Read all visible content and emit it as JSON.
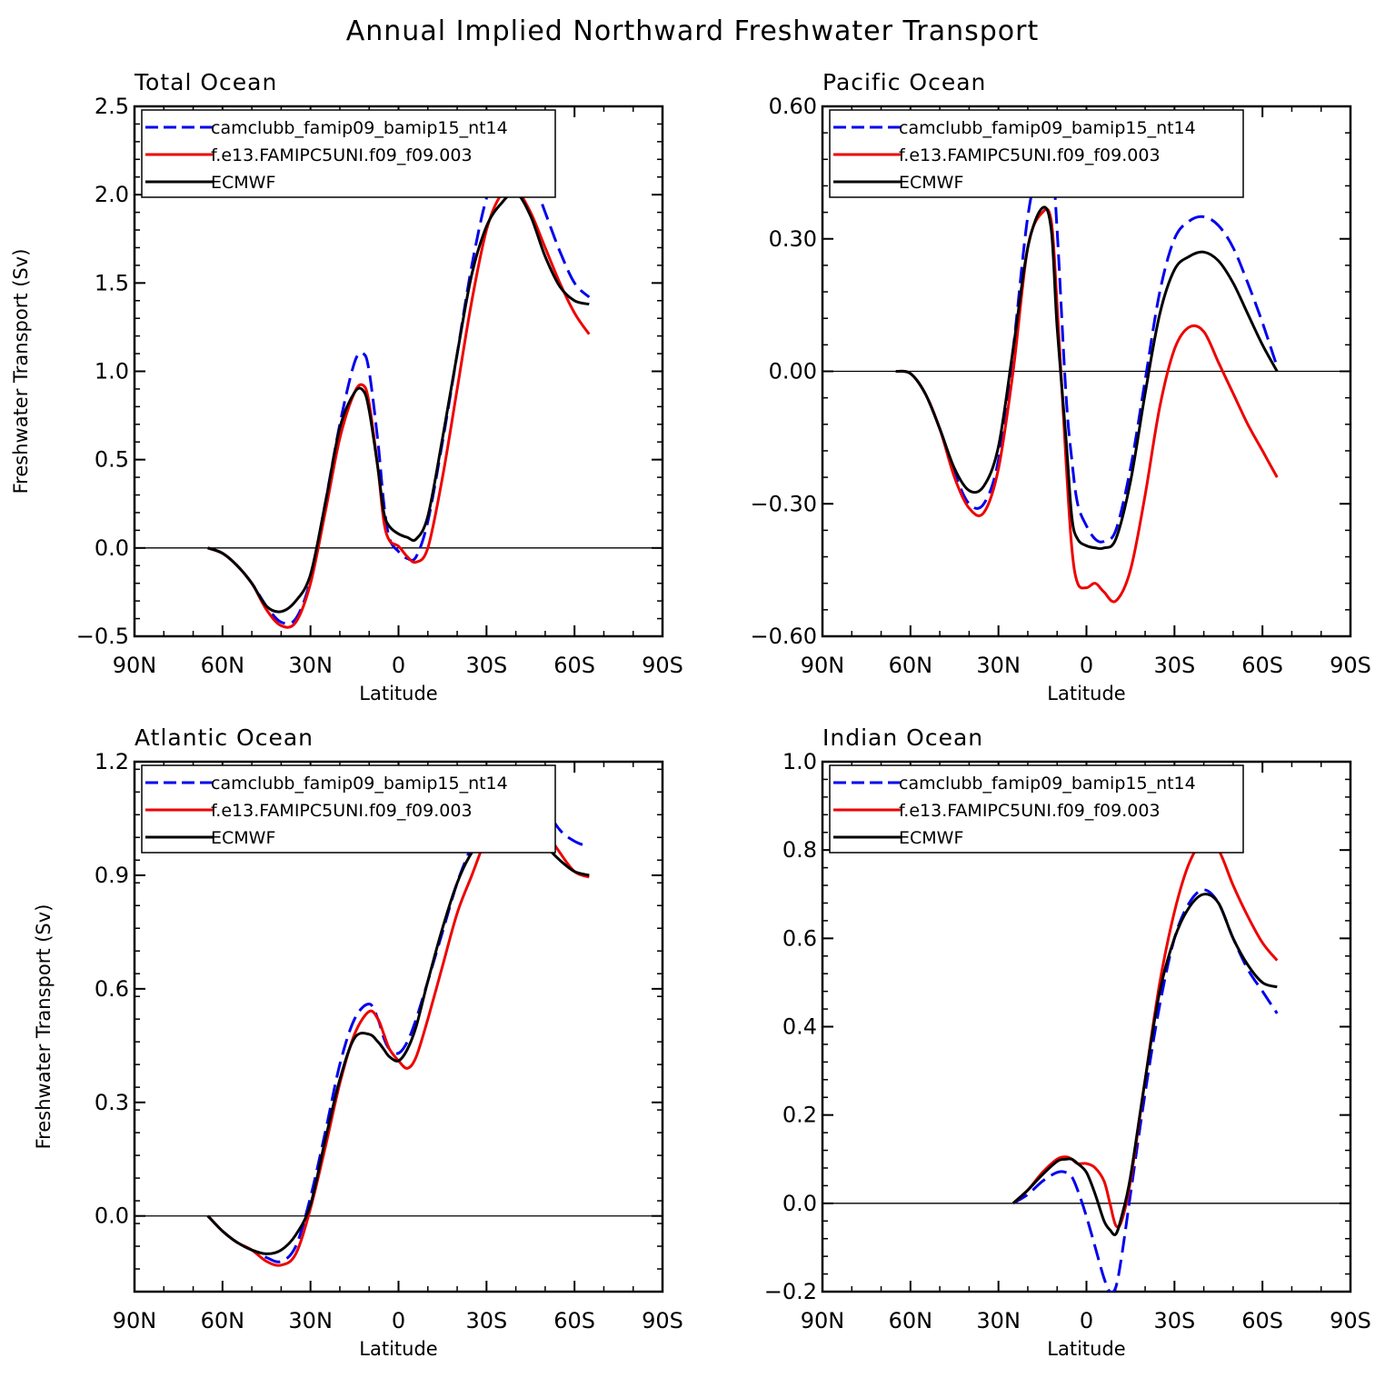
{
  "title": "Annual Implied Northward Freshwater Transport",
  "chart_data": [
    {
      "type": "line",
      "panel_title": "Total Ocean",
      "xlabel": "Latitude",
      "ylabel": "Freshwater Transport (Sv)",
      "xlim": [
        90,
        -90
      ],
      "x_ticks": [
        90,
        60,
        30,
        0,
        -30,
        -60,
        -90
      ],
      "x_tick_labels": [
        "90N",
        "60N",
        "30N",
        "0",
        "30S",
        "60S",
        "90S"
      ],
      "ylim": [
        -0.5,
        2.5
      ],
      "y_ticks": [
        -0.5,
        0.0,
        0.5,
        1.0,
        1.5,
        2.0,
        2.5
      ],
      "y_tick_labels": [
        "−0.5",
        "0.0",
        "0.5",
        "1.0",
        "1.5",
        "2.0",
        "2.5"
      ],
      "legend_position": "top-left",
      "series": [
        {
          "name": "camclubb_famip09_bamip15_nt14",
          "color": "#0000ee",
          "dash": true,
          "x": [
            65,
            60,
            55,
            50,
            45,
            40,
            35,
            30,
            25,
            20,
            15,
            12,
            10,
            7,
            5,
            3,
            0,
            -3,
            -6,
            -10,
            -15,
            -20,
            -25,
            -30,
            -35,
            -40,
            -45,
            -50,
            -55,
            -60,
            -65
          ],
          "y": [
            0.0,
            -0.03,
            -0.1,
            -0.2,
            -0.33,
            -0.42,
            -0.4,
            -0.18,
            0.25,
            0.7,
            1.05,
            1.1,
            1.0,
            0.6,
            0.25,
            0.05,
            -0.02,
            -0.06,
            -0.05,
            0.15,
            0.6,
            1.1,
            1.6,
            1.98,
            2.18,
            2.24,
            2.12,
            1.9,
            1.68,
            1.5,
            1.42
          ]
        },
        {
          "name": "f.e13.FAMIPC5UNI.f09_f09.003",
          "color": "#ee0000",
          "dash": false,
          "x": [
            65,
            60,
            55,
            50,
            45,
            40,
            35,
            30,
            25,
            20,
            15,
            12,
            10,
            7,
            5,
            3,
            0,
            -3,
            -6,
            -10,
            -15,
            -20,
            -25,
            -30,
            -35,
            -40,
            -45,
            -50,
            -55,
            -60,
            -65
          ],
          "y": [
            0.0,
            -0.03,
            -0.1,
            -0.2,
            -0.35,
            -0.44,
            -0.42,
            -0.2,
            0.2,
            0.62,
            0.88,
            0.92,
            0.82,
            0.45,
            0.15,
            0.04,
            0.01,
            -0.05,
            -0.08,
            0.0,
            0.4,
            0.9,
            1.4,
            1.8,
            2.0,
            2.03,
            1.9,
            1.7,
            1.5,
            1.33,
            1.21
          ]
        },
        {
          "name": "ECMWF",
          "color": "#000000",
          "dash": false,
          "x": [
            65,
            60,
            55,
            50,
            45,
            40,
            35,
            30,
            25,
            20,
            15,
            12,
            10,
            7,
            5,
            3,
            0,
            -3,
            -6,
            -10,
            -15,
            -20,
            -25,
            -30,
            -35,
            -40,
            -45,
            -50,
            -55,
            -60,
            -65
          ],
          "y": [
            0.0,
            -0.03,
            -0.1,
            -0.2,
            -0.33,
            -0.36,
            -0.3,
            -0.15,
            0.25,
            0.68,
            0.88,
            0.89,
            0.78,
            0.45,
            0.2,
            0.12,
            0.08,
            0.06,
            0.05,
            0.18,
            0.62,
            1.1,
            1.55,
            1.82,
            1.95,
            2.01,
            1.88,
            1.65,
            1.48,
            1.4,
            1.38
          ]
        }
      ]
    },
    {
      "type": "line",
      "panel_title": "Pacific Ocean",
      "xlabel": "Latitude",
      "ylabel": "",
      "xlim": [
        90,
        -90
      ],
      "x_ticks": [
        90,
        60,
        30,
        0,
        -30,
        -60,
        -90
      ],
      "x_tick_labels": [
        "90N",
        "60N",
        "30N",
        "0",
        "30S",
        "60S",
        "90S"
      ],
      "ylim": [
        -0.6,
        0.6
      ],
      "y_ticks": [
        -0.6,
        -0.3,
        0.0,
        0.3,
        0.6
      ],
      "y_tick_labels": [
        "−0.60",
        "−0.30",
        "0.00",
        "0.30",
        "0.60"
      ],
      "legend_position": "top-left",
      "series": [
        {
          "name": "camclubb_famip09_bamip15_nt14",
          "color": "#0000ee",
          "dash": true,
          "x": [
            65,
            60,
            55,
            50,
            45,
            40,
            35,
            30,
            25,
            20,
            15,
            12,
            10,
            7,
            5,
            3,
            0,
            -3,
            -6,
            -10,
            -15,
            -20,
            -25,
            -30,
            -35,
            -40,
            -45,
            -50,
            -55,
            -60,
            -65
          ],
          "y": [
            0.0,
            -0.005,
            -0.05,
            -0.13,
            -0.23,
            -0.3,
            -0.3,
            -0.2,
            0.05,
            0.35,
            0.5,
            0.5,
            0.32,
            -0.05,
            -0.2,
            -0.3,
            -0.35,
            -0.38,
            -0.385,
            -0.36,
            -0.22,
            -0.02,
            0.18,
            0.3,
            0.34,
            0.35,
            0.33,
            0.28,
            0.2,
            0.11,
            0.01
          ]
        },
        {
          "name": "f.e13.FAMIPC5UNI.f09_f09.003",
          "color": "#ee0000",
          "dash": false,
          "x": [
            65,
            60,
            55,
            50,
            45,
            40,
            35,
            30,
            25,
            20,
            15,
            12,
            10,
            7,
            5,
            3,
            0,
            -3,
            -6,
            -10,
            -15,
            -20,
            -25,
            -30,
            -35,
            -40,
            -45,
            -50,
            -55,
            -60,
            -65
          ],
          "y": [
            0.0,
            -0.005,
            -0.05,
            -0.13,
            -0.24,
            -0.31,
            -0.32,
            -0.22,
            0.0,
            0.28,
            0.36,
            0.34,
            0.15,
            -0.2,
            -0.4,
            -0.48,
            -0.49,
            -0.48,
            -0.5,
            -0.52,
            -0.45,
            -0.28,
            -0.08,
            0.05,
            0.1,
            0.09,
            0.02,
            -0.05,
            -0.12,
            -0.18,
            -0.24
          ]
        },
        {
          "name": "ECMWF",
          "color": "#000000",
          "dash": false,
          "x": [
            65,
            60,
            55,
            50,
            45,
            40,
            35,
            30,
            25,
            20,
            15,
            12,
            10,
            7,
            5,
            3,
            0,
            -3,
            -6,
            -10,
            -15,
            -20,
            -25,
            -30,
            -35,
            -40,
            -45,
            -50,
            -55,
            -60,
            -65
          ],
          "y": [
            0.0,
            -0.005,
            -0.05,
            -0.13,
            -0.22,
            -0.27,
            -0.26,
            -0.17,
            0.05,
            0.28,
            0.37,
            0.32,
            0.1,
            -0.15,
            -0.33,
            -0.38,
            -0.395,
            -0.4,
            -0.4,
            -0.38,
            -0.25,
            -0.05,
            0.13,
            0.23,
            0.26,
            0.27,
            0.25,
            0.2,
            0.13,
            0.06,
            0.0
          ]
        }
      ]
    },
    {
      "type": "line",
      "panel_title": "Atlantic Ocean",
      "xlabel": "Latitude",
      "ylabel": "Freshwater Transport (Sv)",
      "xlim": [
        90,
        -90
      ],
      "x_ticks": [
        90,
        60,
        30,
        0,
        -30,
        -60,
        -90
      ],
      "x_tick_labels": [
        "90N",
        "60N",
        "30N",
        "0",
        "30S",
        "60S",
        "90S"
      ],
      "ylim": [
        -0.2,
        1.2
      ],
      "y_ticks": [
        0.0,
        0.3,
        0.6,
        0.9,
        1.2
      ],
      "y_tick_labels": [
        "0.0",
        "0.3",
        "0.6",
        "0.9",
        "1.2"
      ],
      "legend_position": "top-left",
      "series": [
        {
          "name": "camclubb_famip09_bamip15_nt14",
          "color": "#0000ee",
          "dash": true,
          "x": [
            65,
            60,
            55,
            50,
            45,
            40,
            35,
            30,
            25,
            20,
            15,
            10,
            7,
            5,
            3,
            0,
            -3,
            -6,
            -10,
            -15,
            -20,
            -25,
            -30,
            -35,
            -40,
            -45,
            -50,
            -55,
            -60,
            -65
          ],
          "y": [
            0.0,
            -0.04,
            -0.07,
            -0.09,
            -0.11,
            -0.12,
            -0.08,
            0.05,
            0.22,
            0.4,
            0.52,
            0.56,
            0.52,
            0.47,
            0.44,
            0.43,
            0.46,
            0.52,
            0.62,
            0.75,
            0.88,
            0.98,
            1.08,
            1.15,
            1.18,
            1.15,
            1.08,
            1.02,
            0.99,
            0.975
          ]
        },
        {
          "name": "f.e13.FAMIPC5UNI.f09_f09.003",
          "color": "#ee0000",
          "dash": false,
          "x": [
            65,
            60,
            55,
            50,
            45,
            40,
            35,
            30,
            25,
            20,
            15,
            10,
            7,
            5,
            3,
            0,
            -3,
            -6,
            -10,
            -15,
            -20,
            -25,
            -30,
            -35,
            -40,
            -45,
            -50,
            -55,
            -60,
            -65
          ],
          "y": [
            0.0,
            -0.04,
            -0.07,
            -0.09,
            -0.12,
            -0.13,
            -0.1,
            0.02,
            0.18,
            0.35,
            0.48,
            0.54,
            0.52,
            0.48,
            0.44,
            0.41,
            0.39,
            0.42,
            0.52,
            0.66,
            0.8,
            0.9,
            1.0,
            1.07,
            1.11,
            1.09,
            1.02,
            0.96,
            0.91,
            0.895
          ]
        },
        {
          "name": "ECMWF",
          "color": "#000000",
          "dash": false,
          "x": [
            65,
            60,
            55,
            50,
            45,
            40,
            35,
            30,
            25,
            20,
            15,
            10,
            7,
            5,
            3,
            0,
            -3,
            -6,
            -10,
            -15,
            -20,
            -25,
            -30,
            -35,
            -40,
            -45,
            -50,
            -55,
            -60,
            -65
          ],
          "y": [
            0.0,
            -0.04,
            -0.07,
            -0.09,
            -0.1,
            -0.09,
            -0.05,
            0.03,
            0.2,
            0.36,
            0.47,
            0.48,
            0.46,
            0.44,
            0.42,
            0.41,
            0.44,
            0.5,
            0.62,
            0.76,
            0.88,
            0.96,
            1.0,
            1.02,
            1.04,
            1.03,
            0.98,
            0.94,
            0.91,
            0.9
          ]
        }
      ]
    },
    {
      "type": "line",
      "panel_title": "Indian Ocean",
      "xlabel": "Latitude",
      "ylabel": "",
      "xlim": [
        90,
        -90
      ],
      "x_ticks": [
        90,
        60,
        30,
        0,
        -30,
        -60,
        -90
      ],
      "x_tick_labels": [
        "90N",
        "60N",
        "30N",
        "0",
        "30S",
        "60S",
        "90S"
      ],
      "ylim": [
        -0.2,
        1.0
      ],
      "y_ticks": [
        -0.2,
        0.0,
        0.2,
        0.4,
        0.6,
        0.8,
        1.0
      ],
      "y_tick_labels": [
        "−0.2",
        "0.0",
        "0.2",
        "0.4",
        "0.6",
        "0.8",
        "1.0"
      ],
      "legend_position": "top-left",
      "series": [
        {
          "name": "camclubb_famip09_bamip15_nt14",
          "color": "#0000ee",
          "dash": true,
          "x": [
            25,
            20,
            15,
            10,
            7,
            5,
            3,
            0,
            -3,
            -6,
            -8,
            -10,
            -12,
            -15,
            -20,
            -25,
            -30,
            -35,
            -40,
            -45,
            -50,
            -55,
            -60,
            -65
          ],
          "y": [
            0.0,
            0.02,
            0.05,
            0.07,
            0.07,
            0.06,
            0.03,
            -0.03,
            -0.1,
            -0.17,
            -0.2,
            -0.19,
            -0.12,
            0.02,
            0.25,
            0.45,
            0.6,
            0.68,
            0.71,
            0.68,
            0.6,
            0.53,
            0.48,
            0.43
          ]
        },
        {
          "name": "f.e13.FAMIPC5UNI.f09_f09.003",
          "color": "#ee0000",
          "dash": false,
          "x": [
            25,
            20,
            15,
            10,
            7,
            5,
            3,
            0,
            -3,
            -6,
            -8,
            -10,
            -12,
            -15,
            -20,
            -25,
            -30,
            -35,
            -40,
            -45,
            -50,
            -55,
            -60,
            -65
          ],
          "y": [
            0.0,
            0.03,
            0.07,
            0.1,
            0.105,
            0.1,
            0.09,
            0.09,
            0.08,
            0.05,
            0.0,
            -0.05,
            -0.04,
            0.05,
            0.28,
            0.5,
            0.66,
            0.77,
            0.82,
            0.8,
            0.72,
            0.65,
            0.59,
            0.55
          ]
        },
        {
          "name": "ECMWF",
          "color": "#000000",
          "dash": false,
          "x": [
            25,
            20,
            15,
            10,
            7,
            5,
            3,
            0,
            -3,
            -6,
            -8,
            -10,
            -12,
            -15,
            -20,
            -25,
            -30,
            -35,
            -40,
            -45,
            -50,
            -55,
            -60,
            -65
          ],
          "y": [
            0.0,
            0.03,
            0.065,
            0.095,
            0.1,
            0.1,
            0.09,
            0.07,
            0.02,
            -0.04,
            -0.06,
            -0.07,
            -0.03,
            0.06,
            0.28,
            0.48,
            0.6,
            0.67,
            0.7,
            0.68,
            0.6,
            0.54,
            0.5,
            0.49
          ]
        }
      ]
    }
  ]
}
